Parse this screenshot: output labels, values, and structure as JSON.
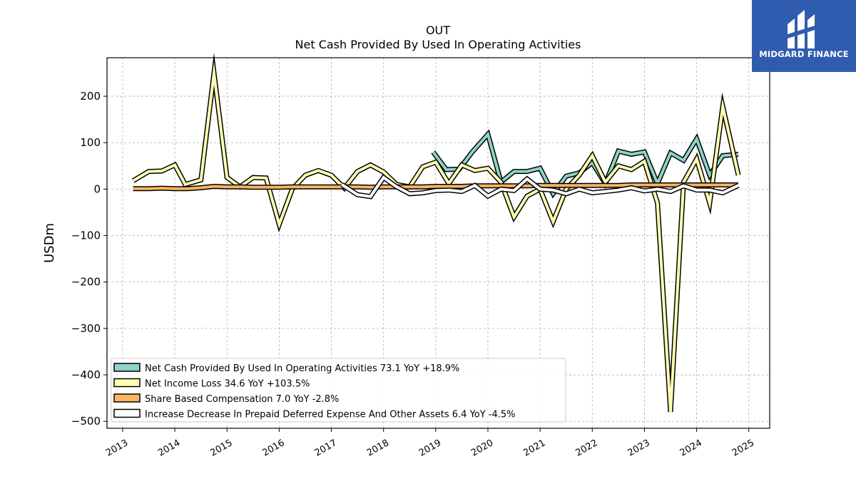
{
  "brand": {
    "name": "MIDGARD FINANCE",
    "bg_color": "#2f5cae"
  },
  "chart_data": {
    "type": "line",
    "title": "OUT",
    "subtitle": "Net Cash Provided By Used In Operating Activities",
    "ylabel": "USDm",
    "xlabel": "",
    "xlim": [
      2012.7,
      2025.4
    ],
    "ylim": [
      -515,
      283
    ],
    "xticks": [
      2013,
      2014,
      2015,
      2016,
      2017,
      2018,
      2019,
      2020,
      2021,
      2022,
      2023,
      2024,
      2025
    ],
    "yticks": [
      200,
      100,
      0,
      -100,
      -200,
      -300,
      -400,
      -500
    ],
    "ytick_labels": [
      "200",
      "100",
      "0",
      "−100",
      "−200",
      "−300",
      "−400",
      "−500"
    ],
    "grid": true,
    "legend_position": "lower-left",
    "series": [
      {
        "name": "Net Cash Provided By Used In Operating Activities",
        "legend_label": "Net Cash Provided By Used In Operating Activities  73.1 YoY +18.9%",
        "color": "#8dd3c7",
        "x": [
          2018.95,
          2019.2,
          2019.45,
          2019.7,
          2020.0,
          2020.25,
          2020.5,
          2020.75,
          2021.0,
          2021.25,
          2021.5,
          2021.75,
          2022.0,
          2022.25,
          2022.5,
          2022.75,
          2023.0,
          2023.25,
          2023.5,
          2023.75,
          2024.0,
          2024.25,
          2024.5,
          2024.8
        ],
        "y": [
          80,
          42,
          43,
          80,
          118,
          15,
          38,
          38,
          45,
          -10,
          28,
          35,
          57,
          12,
          82,
          75,
          80,
          12,
          78,
          62,
          108,
          30,
          72,
          75
        ]
      },
      {
        "name": "Net Income Loss",
        "legend_label": "Net Income Loss  34.6 YoY +103.5%",
        "color": "#ffffb3",
        "x": [
          2013.2,
          2013.5,
          2013.75,
          2014.0,
          2014.2,
          2014.5,
          2014.75,
          2015.0,
          2015.25,
          2015.5,
          2015.75,
          2016.0,
          2016.25,
          2016.5,
          2016.75,
          2017.0,
          2017.25,
          2017.5,
          2017.75,
          2018.0,
          2018.25,
          2018.5,
          2018.75,
          2019.0,
          2019.25,
          2019.5,
          2019.75,
          2020.0,
          2020.25,
          2020.5,
          2020.75,
          2021.0,
          2021.25,
          2021.5,
          2021.75,
          2022.0,
          2022.25,
          2022.5,
          2022.75,
          2023.0,
          2023.25,
          2023.5,
          2023.75,
          2024.0,
          2024.25,
          2024.5,
          2024.8
        ],
        "y": [
          18,
          38,
          39,
          52,
          10,
          20,
          250,
          25,
          5,
          25,
          24,
          -76,
          0,
          30,
          40,
          30,
          2,
          38,
          52,
          37,
          10,
          5,
          48,
          58,
          12,
          52,
          40,
          45,
          15,
          -60,
          -15,
          0,
          -70,
          0,
          30,
          72,
          15,
          50,
          42,
          60,
          -30,
          -480,
          15,
          65,
          -30,
          178,
          30
        ]
      },
      {
        "name": "Share Based Compensation",
        "legend_label": "Share Based Compensation  7.0 YoY -2.8%",
        "color": "#fdb462",
        "x": [
          2013.2,
          2013.5,
          2013.75,
          2014.0,
          2014.25,
          2014.5,
          2014.75,
          2015.0,
          2015.25,
          2015.5,
          2015.75,
          2016.0,
          2016.25,
          2016.5,
          2016.75,
          2017.0,
          2017.25,
          2017.5,
          2017.75,
          2018.0,
          2018.25,
          2018.5,
          2018.75,
          2019.0,
          2019.25,
          2019.5,
          2019.75,
          2020.0,
          2020.25,
          2020.5,
          2020.75,
          2021.0,
          2021.25,
          2021.5,
          2021.75,
          2022.0,
          2022.25,
          2022.5,
          2022.75,
          2023.0,
          2023.25,
          2023.5,
          2023.75,
          2024.0,
          2024.25,
          2024.5,
          2024.8
        ],
        "y": [
          1,
          1,
          2,
          1,
          1,
          3,
          6,
          5,
          5,
          4,
          4,
          4,
          5,
          5,
          5,
          5,
          5,
          5,
          4,
          5,
          5,
          5,
          5,
          6,
          6,
          6,
          7,
          7,
          7,
          7,
          7,
          8,
          8,
          8,
          8,
          8,
          8,
          8,
          9,
          9,
          9,
          9,
          9,
          9,
          9,
          9,
          9
        ]
      },
      {
        "name": "Increase Decrease In Prepaid Deferred Expense And Other Assets",
        "legend_label": "Increase Decrease In Prepaid Deferred Expense And Other Assets  6.4 YoY -4.5%",
        "color": "#ffffff",
        "x": [
          2017.2,
          2017.5,
          2017.75,
          2018.0,
          2018.25,
          2018.5,
          2018.75,
          2019.0,
          2019.25,
          2019.5,
          2019.75,
          2020.0,
          2020.25,
          2020.5,
          2020.75,
          2021.0,
          2021.25,
          2021.5,
          2021.75,
          2022.0,
          2022.25,
          2022.5,
          2022.75,
          2023.0,
          2023.25,
          2023.5,
          2023.75,
          2024.0,
          2024.25,
          2024.5,
          2024.8
        ],
        "y": [
          10,
          -12,
          -16,
          25,
          5,
          -10,
          -8,
          -3,
          -2,
          -5,
          8,
          -15,
          0,
          -3,
          22,
          0,
          -2,
          -10,
          0,
          -8,
          -5,
          -2,
          3,
          -4,
          0,
          -5,
          7,
          -2,
          -2,
          -8,
          8
        ]
      }
    ]
  }
}
